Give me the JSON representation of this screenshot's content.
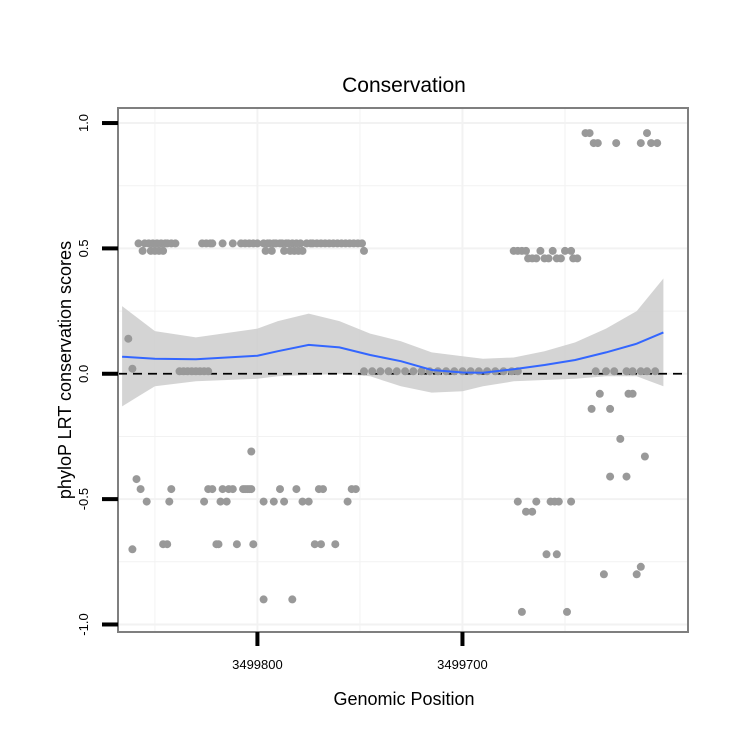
{
  "chart_data": {
    "type": "scatter",
    "title": "Conservation",
    "xlabel": "Genomic Position",
    "ylabel": "phyloP LRT conservation scores",
    "x_reversed": true,
    "xlim": [
      3499868,
      3499590
    ],
    "ylim": [
      -1.03,
      1.06
    ],
    "x_ticks": [
      3499800,
      3499700
    ],
    "y_ticks": [
      -1.0,
      -0.5,
      0.0,
      0.5,
      1.0
    ],
    "grid": true,
    "legend": "none",
    "colors": {
      "points": "#999999",
      "smooth_line": "#3366ff",
      "ribbon": "#cccccc",
      "reference_line": "#000000",
      "frame": "#7f7f7f",
      "grid": "#f2f2f2"
    },
    "reference_line": {
      "y": 0,
      "style": "dashed"
    },
    "points": [
      [
        3499863,
        0.14
      ],
      [
        3499861,
        0.02
      ],
      [
        3499859,
        -0.42
      ],
      [
        3499861,
        -0.7
      ],
      [
        3499857,
        -0.46
      ],
      [
        3499854,
        -0.51
      ],
      [
        3499858,
        0.52
      ],
      [
        3499856,
        0.49
      ],
      [
        3499855,
        0.52
      ],
      [
        3499853,
        0.52
      ],
      [
        3499852,
        0.49
      ],
      [
        3499851,
        0.52
      ],
      [
        3499850,
        0.49
      ],
      [
        3499849,
        0.52
      ],
      [
        3499848,
        0.49
      ],
      [
        3499847,
        0.52
      ],
      [
        3499846,
        0.49
      ],
      [
        3499845,
        0.52
      ],
      [
        3499844,
        0.52
      ],
      [
        3499842,
        0.52
      ],
      [
        3499840,
        0.52
      ],
      [
        3499846,
        -0.68
      ],
      [
        3499844,
        -0.68
      ],
      [
        3499843,
        -0.51
      ],
      [
        3499842,
        -0.46
      ],
      [
        3499838,
        0.01
      ],
      [
        3499836,
        0.01
      ],
      [
        3499834,
        0.01
      ],
      [
        3499832,
        0.01
      ],
      [
        3499830,
        0.01
      ],
      [
        3499828,
        0.01
      ],
      [
        3499826,
        0.01
      ],
      [
        3499824,
        0.01
      ],
      [
        3499827,
        0.52
      ],
      [
        3499825,
        0.52
      ],
      [
        3499823,
        0.52
      ],
      [
        3499822,
        0.52
      ],
      [
        3499826,
        -0.51
      ],
      [
        3499824,
        -0.46
      ],
      [
        3499822,
        -0.46
      ],
      [
        3499820,
        -0.68
      ],
      [
        3499819,
        -0.68
      ],
      [
        3499818,
        -0.51
      ],
      [
        3499817,
        -0.46
      ],
      [
        3499817,
        0.52
      ],
      [
        3499815,
        -0.51
      ],
      [
        3499814,
        -0.46
      ],
      [
        3499812,
        -0.46
      ],
      [
        3499812,
        0.52
      ],
      [
        3499810,
        -0.68
      ],
      [
        3499808,
        0.52
      ],
      [
        3499806,
        0.52
      ],
      [
        3499804,
        0.52
      ],
      [
        3499807,
        -0.46
      ],
      [
        3499806,
        -0.46
      ],
      [
        3499805,
        -0.46
      ],
      [
        3499804,
        -0.46
      ],
      [
        3499803,
        -0.46
      ],
      [
        3499803,
        -0.31
      ],
      [
        3499802,
        0.52
      ],
      [
        3499802,
        -0.68
      ],
      [
        3499800,
        0.52
      ],
      [
        3499797,
        0.52
      ],
      [
        3499796,
        0.49
      ],
      [
        3499795,
        0.52
      ],
      [
        3499794,
        0.52
      ],
      [
        3499793,
        0.49
      ],
      [
        3499792,
        0.52
      ],
      [
        3499791,
        0.52
      ],
      [
        3499789,
        0.52
      ],
      [
        3499797,
        -0.51
      ],
      [
        3499797,
        -0.9
      ],
      [
        3499792,
        -0.51
      ],
      [
        3499789,
        -0.46
      ],
      [
        3499788,
        0.52
      ],
      [
        3499787,
        0.49
      ],
      [
        3499786,
        0.52
      ],
      [
        3499785,
        0.52
      ],
      [
        3499784,
        0.49
      ],
      [
        3499783,
        0.52
      ],
      [
        3499782,
        0.49
      ],
      [
        3499781,
        0.52
      ],
      [
        3499780,
        0.49
      ],
      [
        3499779,
        0.52
      ],
      [
        3499778,
        0.49
      ],
      [
        3499787,
        -0.51
      ],
      [
        3499783,
        -0.9
      ],
      [
        3499781,
        -0.46
      ],
      [
        3499778,
        -0.51
      ],
      [
        3499776,
        0.52
      ],
      [
        3499774,
        0.52
      ],
      [
        3499773,
        0.52
      ],
      [
        3499771,
        0.52
      ],
      [
        3499769,
        0.52
      ],
      [
        3499767,
        0.52
      ],
      [
        3499765,
        0.52
      ],
      [
        3499763,
        0.52
      ],
      [
        3499761,
        0.52
      ],
      [
        3499759,
        0.52
      ],
      [
        3499757,
        0.52
      ],
      [
        3499755,
        0.52
      ],
      [
        3499753,
        0.52
      ],
      [
        3499751,
        0.52
      ],
      [
        3499749,
        0.52
      ],
      [
        3499748,
        0.49
      ],
      [
        3499775,
        -0.51
      ],
      [
        3499772,
        -0.68
      ],
      [
        3499770,
        -0.46
      ],
      [
        3499769,
        -0.68
      ],
      [
        3499768,
        -0.46
      ],
      [
        3499762,
        -0.68
      ],
      [
        3499756,
        -0.51
      ],
      [
        3499754,
        -0.46
      ],
      [
        3499752,
        -0.46
      ],
      [
        3499748,
        0.01
      ],
      [
        3499744,
        0.01
      ],
      [
        3499740,
        0.01
      ],
      [
        3499736,
        0.01
      ],
      [
        3499732,
        0.01
      ],
      [
        3499728,
        0.01
      ],
      [
        3499724,
        0.01
      ],
      [
        3499720,
        0.01
      ],
      [
        3499716,
        0.01
      ],
      [
        3499712,
        0.01
      ],
      [
        3499708,
        0.01
      ],
      [
        3499704,
        0.01
      ],
      [
        3499700,
        0.01
      ],
      [
        3499696,
        0.01
      ],
      [
        3499692,
        0.01
      ],
      [
        3499688,
        0.01
      ],
      [
        3499684,
        0.01
      ],
      [
        3499680,
        0.01
      ],
      [
        3499676,
        0.01
      ],
      [
        3499673,
        0.01
      ],
      [
        3499675,
        0.49
      ],
      [
        3499673,
        0.49
      ],
      [
        3499671,
        0.49
      ],
      [
        3499669,
        0.49
      ],
      [
        3499668,
        0.46
      ],
      [
        3499666,
        0.46
      ],
      [
        3499664,
        0.46
      ],
      [
        3499662,
        0.49
      ],
      [
        3499660,
        0.46
      ],
      [
        3499658,
        0.46
      ],
      [
        3499656,
        0.49
      ],
      [
        3499654,
        0.46
      ],
      [
        3499652,
        0.46
      ],
      [
        3499650,
        0.49
      ],
      [
        3499647,
        0.49
      ],
      [
        3499646,
        0.46
      ],
      [
        3499644,
        0.46
      ],
      [
        3499673,
        -0.51
      ],
      [
        3499671,
        -0.95
      ],
      [
        3499669,
        -0.55
      ],
      [
        3499666,
        -0.55
      ],
      [
        3499664,
        -0.51
      ],
      [
        3499657,
        -0.51
      ],
      [
        3499655,
        -0.51
      ],
      [
        3499653,
        -0.51
      ],
      [
        3499659,
        -0.72
      ],
      [
        3499654,
        -0.72
      ],
      [
        3499649,
        -0.95
      ],
      [
        3499647,
        -0.51
      ],
      [
        3499640,
        0.96
      ],
      [
        3499638,
        0.96
      ],
      [
        3499636,
        0.92
      ],
      [
        3499634,
        0.92
      ],
      [
        3499625,
        0.92
      ],
      [
        3499613,
        0.92
      ],
      [
        3499610,
        0.96
      ],
      [
        3499608,
        0.92
      ],
      [
        3499605,
        0.92
      ],
      [
        3499635,
        0.01
      ],
      [
        3499630,
        0.01
      ],
      [
        3499626,
        0.01
      ],
      [
        3499620,
        0.01
      ],
      [
        3499617,
        0.01
      ],
      [
        3499613,
        0.01
      ],
      [
        3499610,
        0.01
      ],
      [
        3499606,
        0.01
      ],
      [
        3499633,
        -0.08
      ],
      [
        3499637,
        -0.14
      ],
      [
        3499628,
        -0.14
      ],
      [
        3499619,
        -0.08
      ],
      [
        3499617,
        -0.08
      ],
      [
        3499628,
        -0.41
      ],
      [
        3499623,
        -0.26
      ],
      [
        3499620,
        -0.41
      ],
      [
        3499611,
        -0.33
      ],
      [
        3499631,
        -0.8
      ],
      [
        3499615,
        -0.8
      ],
      [
        3499613,
        -0.77
      ]
    ],
    "smooth": [
      [
        3499866,
        0.068
      ],
      [
        3499850,
        0.06
      ],
      [
        3499830,
        0.058
      ],
      [
        3499800,
        0.072
      ],
      [
        3499790,
        0.09
      ],
      [
        3499775,
        0.115
      ],
      [
        3499760,
        0.105
      ],
      [
        3499745,
        0.075
      ],
      [
        3499730,
        0.05
      ],
      [
        3499715,
        0.015
      ],
      [
        3499700,
        0.005
      ],
      [
        3499690,
        0.004
      ],
      [
        3499675,
        0.018
      ],
      [
        3499660,
        0.035
      ],
      [
        3499645,
        0.055
      ],
      [
        3499630,
        0.085
      ],
      [
        3499615,
        0.12
      ],
      [
        3499602,
        0.165
      ]
    ],
    "ribbon": [
      [
        3499866,
        0.27,
        -0.13
      ],
      [
        3499858,
        0.22,
        -0.09
      ],
      [
        3499850,
        0.17,
        -0.05
      ],
      [
        3499830,
        0.145,
        -0.03
      ],
      [
        3499800,
        0.18,
        -0.02
      ],
      [
        3499790,
        0.21,
        -0.01
      ],
      [
        3499775,
        0.24,
        -0.005
      ],
      [
        3499760,
        0.21,
        0.0
      ],
      [
        3499745,
        0.16,
        -0.01
      ],
      [
        3499730,
        0.13,
        -0.05
      ],
      [
        3499715,
        0.085,
        -0.075
      ],
      [
        3499700,
        0.07,
        -0.07
      ],
      [
        3499690,
        0.06,
        -0.05
      ],
      [
        3499675,
        0.065,
        -0.03
      ],
      [
        3499660,
        0.09,
        -0.025
      ],
      [
        3499645,
        0.125,
        -0.02
      ],
      [
        3499630,
        0.18,
        -0.01
      ],
      [
        3499615,
        0.25,
        -0.01
      ],
      [
        3499602,
        0.38,
        -0.05
      ]
    ]
  }
}
